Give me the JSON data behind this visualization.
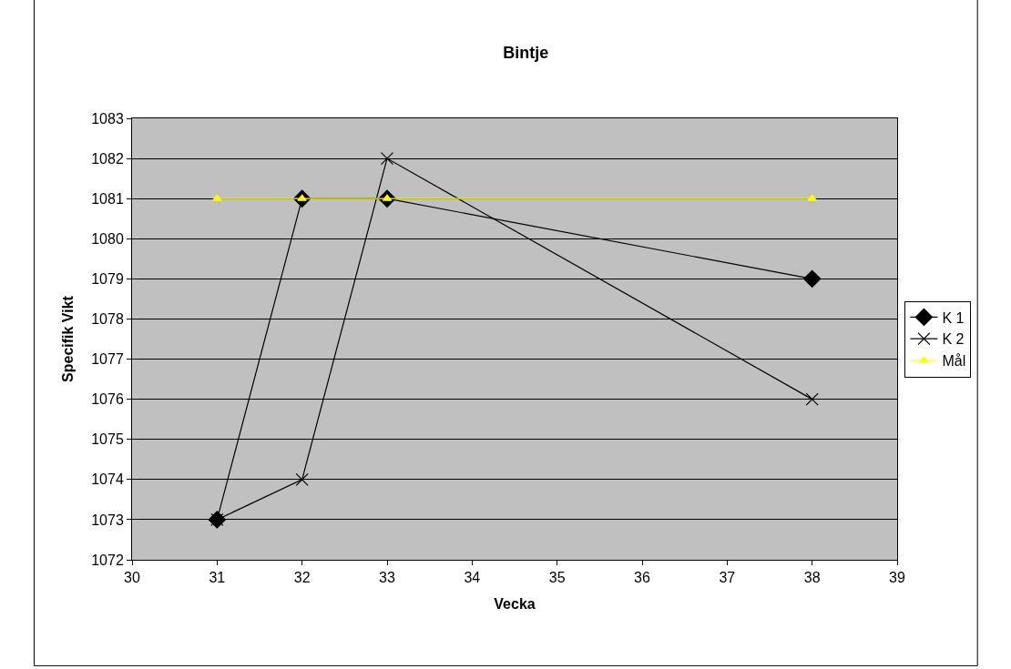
{
  "chart_data": {
    "type": "line",
    "title": "Bintje",
    "xlabel": "Vecka",
    "ylabel": "Specifik Vikt",
    "x": [
      31,
      32,
      33,
      38
    ],
    "series": [
      {
        "name": "K 1",
        "color": "#000000",
        "marker": "diamond",
        "values": [
          1073,
          1081,
          1081,
          1079
        ]
      },
      {
        "name": "K 2",
        "color": "#000000",
        "marker": "cross",
        "values": [
          1073,
          1074,
          1082,
          1076
        ]
      },
      {
        "name": "Mål",
        "color": "#ffff00",
        "marker": "triangle",
        "values": [
          1081,
          1081,
          1081,
          1081
        ]
      }
    ],
    "xlim": [
      30,
      39
    ],
    "xticks": [
      30,
      31,
      32,
      33,
      34,
      35,
      36,
      37,
      38,
      39
    ],
    "ylim": [
      1072,
      1083
    ],
    "yticks": [
      1072,
      1073,
      1074,
      1075,
      1076,
      1077,
      1078,
      1079,
      1080,
      1081,
      1082,
      1083
    ],
    "grid": "y",
    "legend": "right",
    "line_style": "solid"
  }
}
